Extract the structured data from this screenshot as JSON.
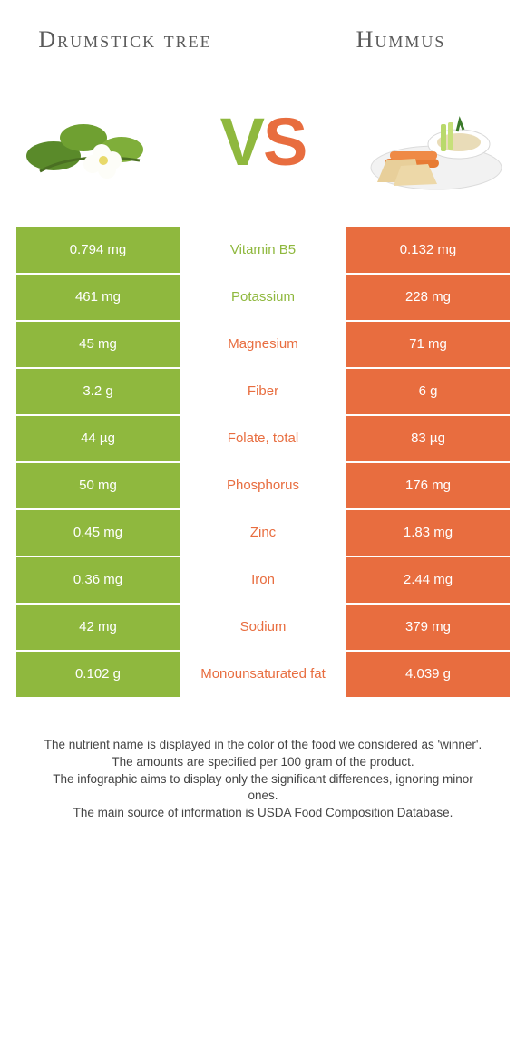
{
  "colors": {
    "left": "#8fb83e",
    "right": "#e86d3f",
    "vs_left": "#8fb83e",
    "vs_right": "#e86d3f",
    "background": "#ffffff",
    "footnote_text": "#444444"
  },
  "food_left": {
    "title": "Drumstick\ntree"
  },
  "food_right": {
    "title": "Hummus"
  },
  "vs_label": "VS",
  "nutrients": [
    {
      "name": "Vitamin B5",
      "left": "0.794 mg",
      "right": "0.132 mg",
      "winner": "left"
    },
    {
      "name": "Potassium",
      "left": "461 mg",
      "right": "228 mg",
      "winner": "left"
    },
    {
      "name": "Magnesium",
      "left": "45 mg",
      "right": "71 mg",
      "winner": "right"
    },
    {
      "name": "Fiber",
      "left": "3.2 g",
      "right": "6 g",
      "winner": "right"
    },
    {
      "name": "Folate, total",
      "left": "44 µg",
      "right": "83 µg",
      "winner": "right"
    },
    {
      "name": "Phosphorus",
      "left": "50 mg",
      "right": "176 mg",
      "winner": "right"
    },
    {
      "name": "Zinc",
      "left": "0.45 mg",
      "right": "1.83 mg",
      "winner": "right"
    },
    {
      "name": "Iron",
      "left": "0.36 mg",
      "right": "2.44 mg",
      "winner": "right"
    },
    {
      "name": "Sodium",
      "left": "42 mg",
      "right": "379 mg",
      "winner": "right"
    },
    {
      "name": "Monounsaturated fat",
      "left": "0.102 g",
      "right": "4.039 g",
      "winner": "right"
    }
  ],
  "footnotes": [
    "The nutrient name is displayed in the color of the food we considered as 'winner'.",
    "The amounts are specified per 100 gram of the product.",
    "The infographic aims to display only the significant differences, ignoring minor ones.",
    "The main source of information is USDA Food Composition Database."
  ]
}
